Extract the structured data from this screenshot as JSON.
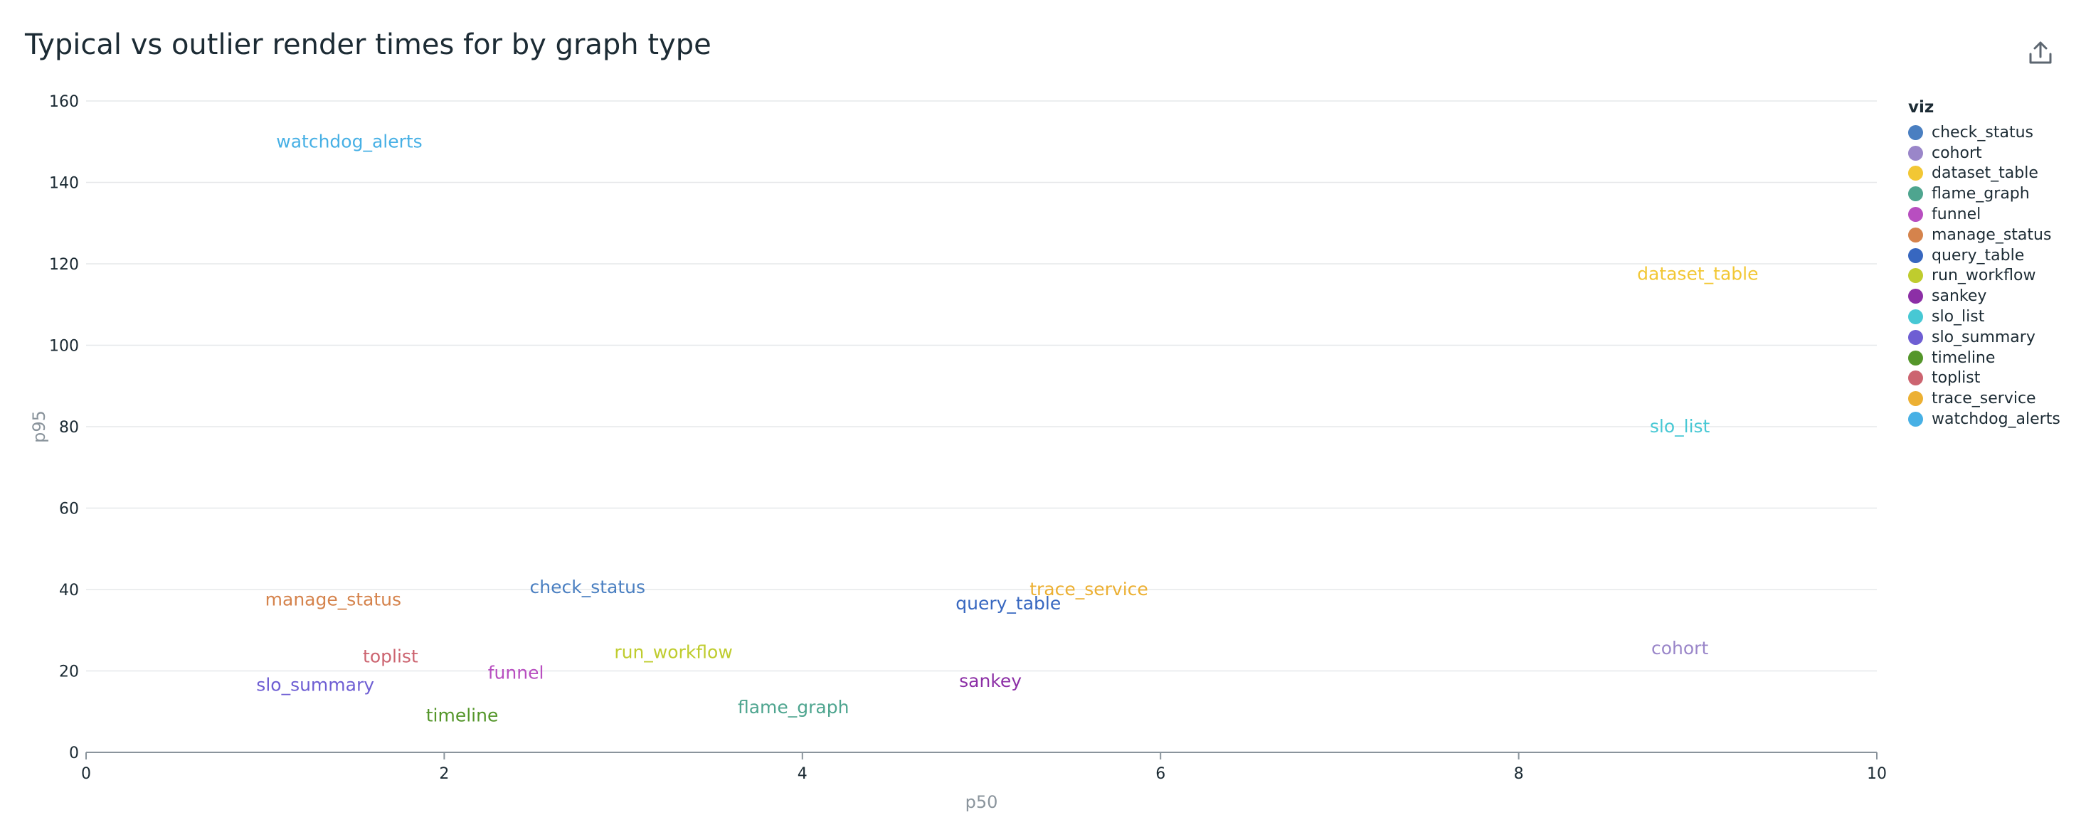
{
  "header": {
    "title": "Typical vs outlier render times for by graph type",
    "export_icon": "export-upload-icon"
  },
  "legend": {
    "title": "viz"
  },
  "chart_data": {
    "type": "scatter",
    "title": "Typical vs outlier render times for by graph type",
    "xlabel": "p50",
    "ylabel": "p95",
    "xlim": [
      0,
      10
    ],
    "ylim": [
      0,
      160
    ],
    "xticks": [
      0,
      2,
      4,
      6,
      8,
      10
    ],
    "yticks": [
      0,
      20,
      40,
      60,
      80,
      100,
      120,
      140,
      160
    ],
    "grid": "horizontal",
    "legend_position": "right",
    "point_style": "text-labels",
    "series": [
      {
        "name": "check_status",
        "color": "#4a7fc1",
        "points": [
          {
            "x": 2.8,
            "y": 40.5
          }
        ]
      },
      {
        "name": "cohort",
        "color": "#9a86c9",
        "points": [
          {
            "x": 8.9,
            "y": 25.5
          }
        ]
      },
      {
        "name": "dataset_table",
        "color": "#f2c734",
        "points": [
          {
            "x": 9.0,
            "y": 117.5
          }
        ]
      },
      {
        "name": "flame_graph",
        "color": "#4ea58f",
        "points": [
          {
            "x": 3.95,
            "y": 11
          }
        ]
      },
      {
        "name": "funnel",
        "color": "#b84ec0",
        "points": [
          {
            "x": 2.4,
            "y": 19.5
          }
        ]
      },
      {
        "name": "manage_status",
        "color": "#d5834c",
        "points": [
          {
            "x": 1.38,
            "y": 37.5
          }
        ]
      },
      {
        "name": "query_table",
        "color": "#3767c0",
        "points": [
          {
            "x": 5.15,
            "y": 36.5
          }
        ]
      },
      {
        "name": "run_workflow",
        "color": "#bfcc2e",
        "points": [
          {
            "x": 3.28,
            "y": 24.5
          }
        ]
      },
      {
        "name": "sankey",
        "color": "#8c2fa6",
        "points": [
          {
            "x": 5.05,
            "y": 17.5
          }
        ]
      },
      {
        "name": "slo_list",
        "color": "#47c8d4",
        "points": [
          {
            "x": 8.9,
            "y": 80
          }
        ]
      },
      {
        "name": "slo_summary",
        "color": "#6e5ed3",
        "points": [
          {
            "x": 1.28,
            "y": 16.5
          }
        ]
      },
      {
        "name": "timeline",
        "color": "#54962a",
        "points": [
          {
            "x": 2.1,
            "y": 9
          }
        ]
      },
      {
        "name": "toplist",
        "color": "#cc6470",
        "points": [
          {
            "x": 1.7,
            "y": 23.5
          }
        ]
      },
      {
        "name": "trace_service",
        "color": "#ecb033",
        "points": [
          {
            "x": 5.6,
            "y": 40
          }
        ]
      },
      {
        "name": "watchdog_alerts",
        "color": "#47b0e5",
        "points": [
          {
            "x": 1.47,
            "y": 150
          }
        ]
      }
    ]
  }
}
